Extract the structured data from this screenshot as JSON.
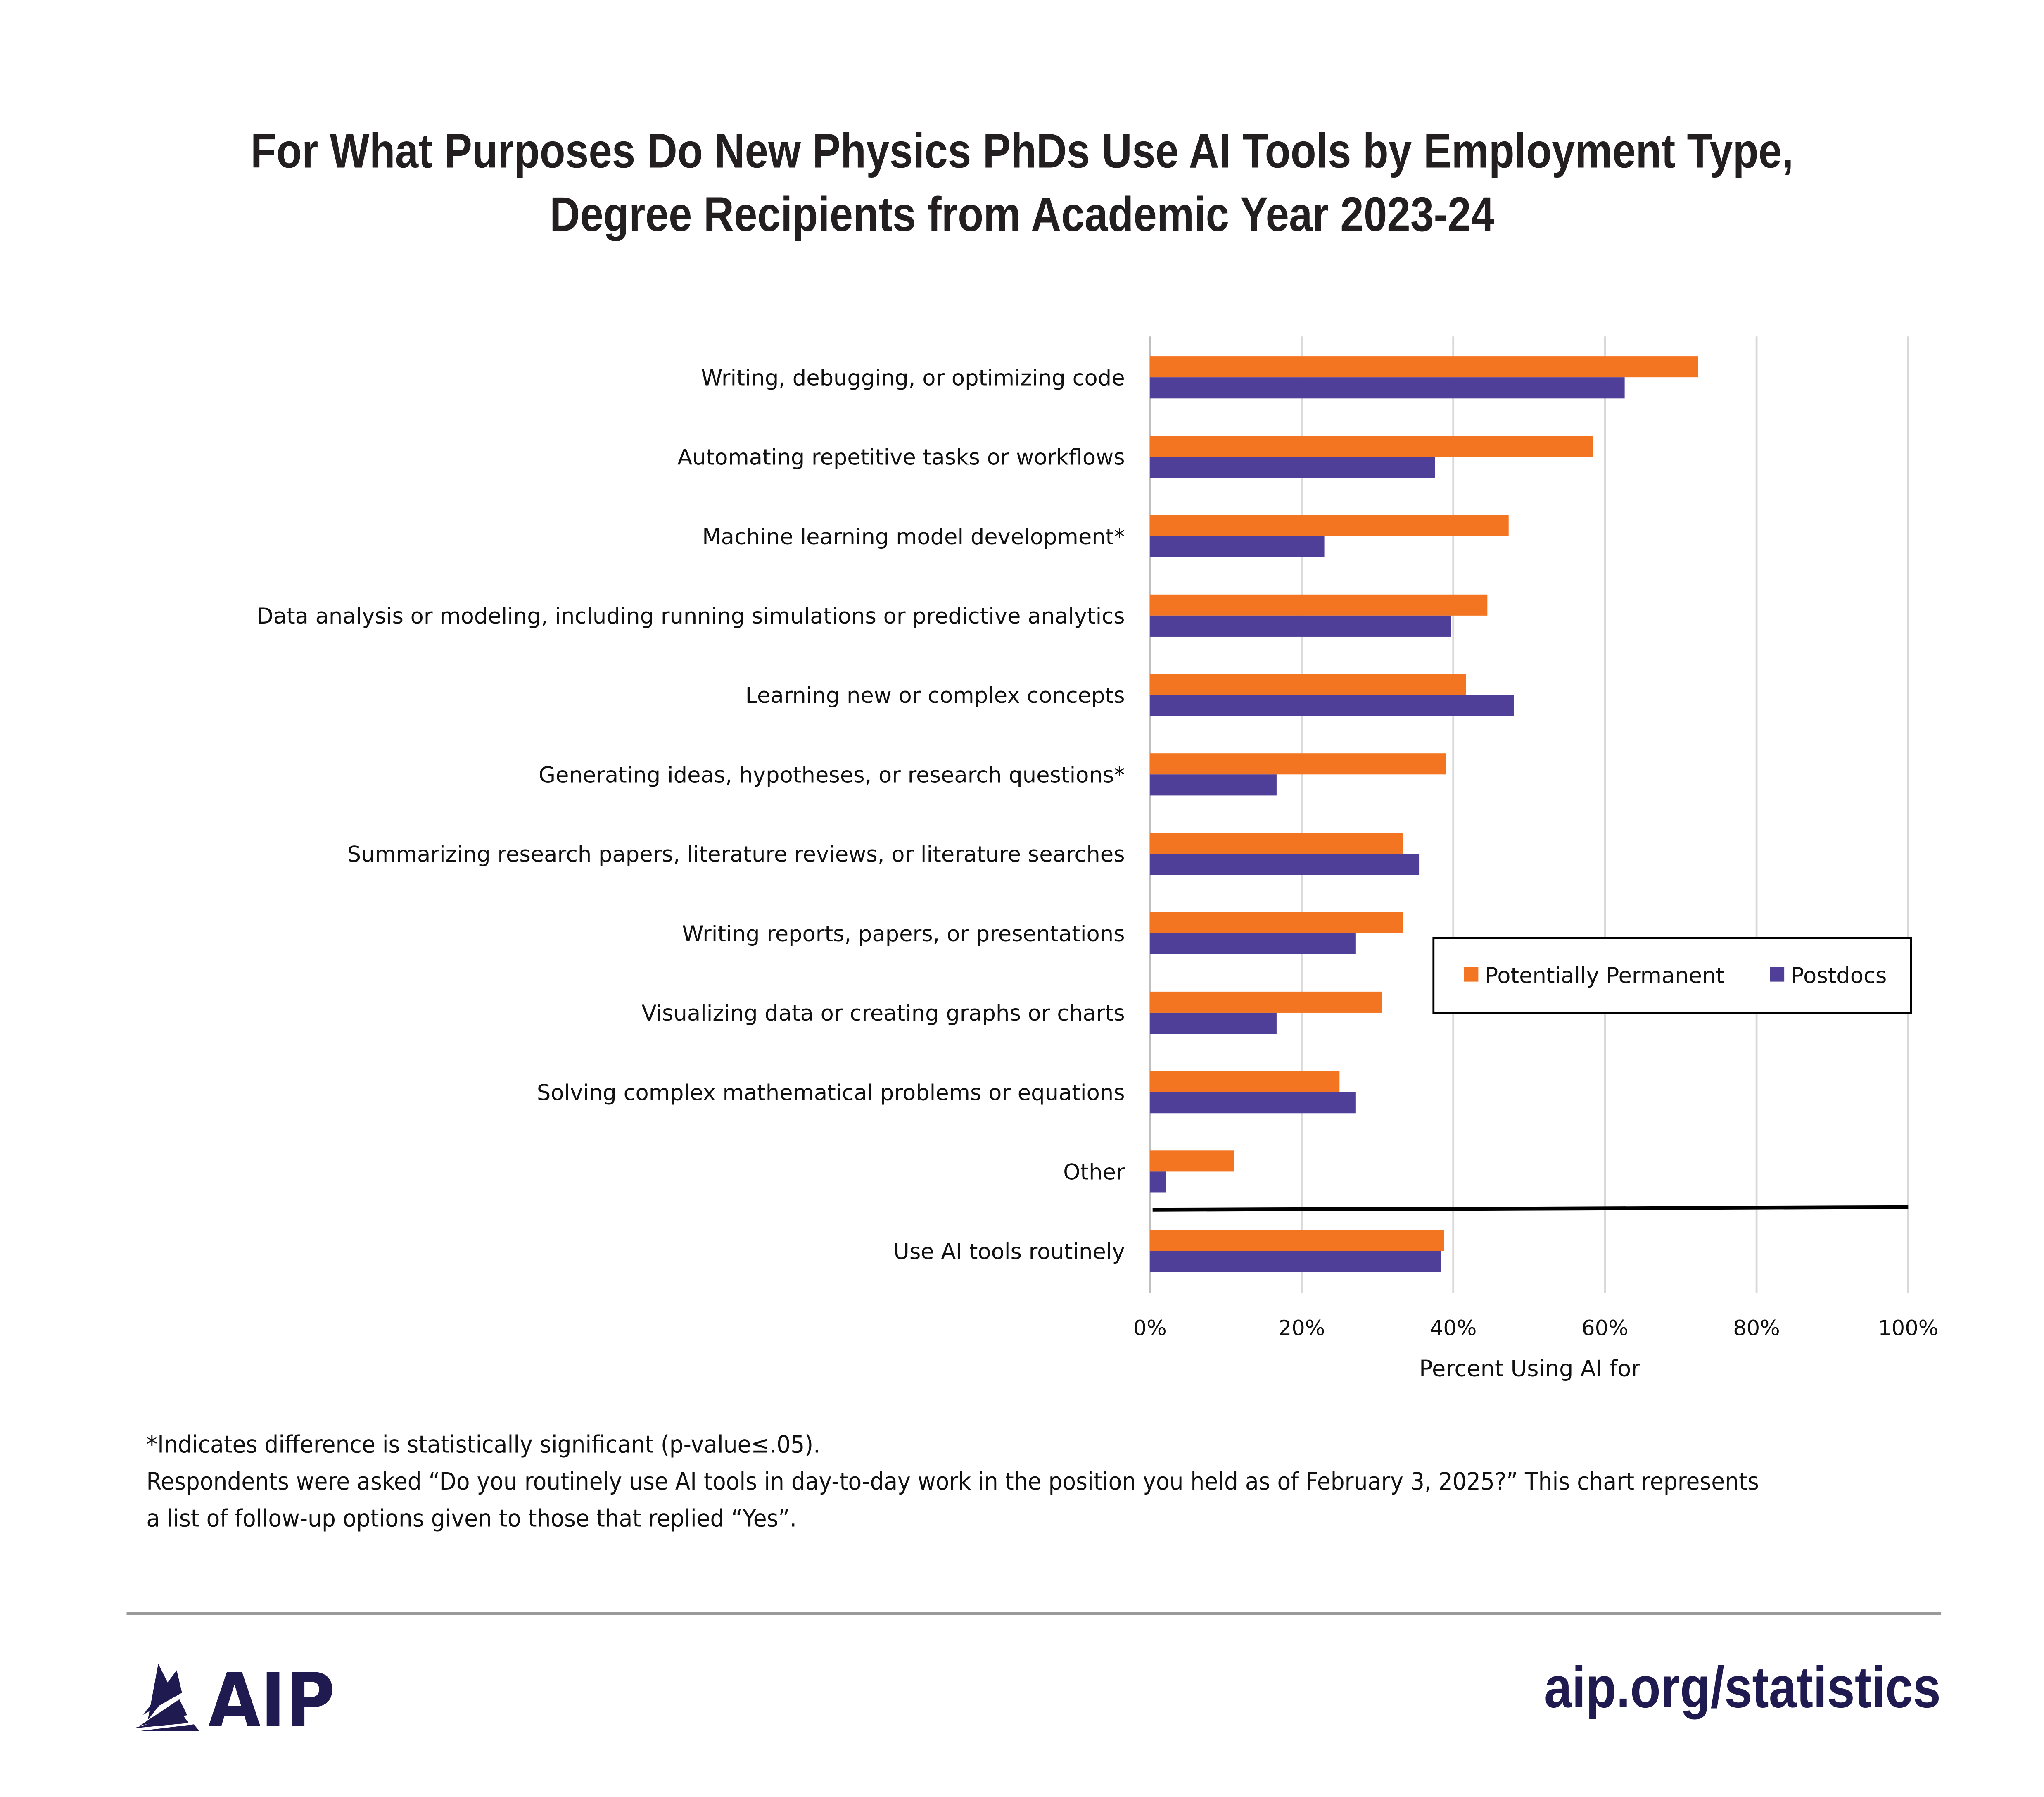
{
  "title_lines": [
    "For What Purposes Do New Physics PhDs Use AI Tools by Employment Type,",
    "Degree Recipients from Academic Year 2023-24"
  ],
  "notes": [
    "*Indicates difference is statistically significant (p-value≤.05).",
    "Respondents were asked “Do you routinely use AI tools in day-to-day work in the position you held as of February 3, 2025?” This chart represents",
    "a list of follow-up options given to those that replied “Yes”."
  ],
  "footer": {
    "logo_text": "AIP",
    "url": "aip.org/statistics"
  },
  "colors": {
    "orange": "#f47521",
    "purple": "#4f3f99"
  },
  "chart_data": {
    "type": "bar",
    "orientation": "horizontal",
    "title": "For What Purposes Do New Physics PhDs Use AI Tools by Employment Type, Degree Recipients from Academic Year 2023-24",
    "xlabel": "Percent Using AI for",
    "ylabel": "",
    "xlim": [
      0,
      100
    ],
    "xticks": [
      "0%",
      "20%",
      "40%",
      "60%",
      "80%",
      "100%"
    ],
    "xtick_values": [
      0,
      20,
      40,
      60,
      80,
      100
    ],
    "grid": true,
    "legend_position": "right-middle",
    "categories": [
      "Writing, debugging, or optimizing code",
      "Automating repetitive tasks or workflows",
      "Machine learning model development*",
      "Data analysis or modeling, including running simulations or predictive analytics",
      "Learning new or complex concepts",
      "Generating ideas, hypotheses, or research questions*",
      "Summarizing research papers, literature reviews, or literature searches",
      "Writing reports, papers, or presentations",
      "Visualizing data or creating graphs or charts",
      "Solving complex mathematical problems or equations",
      "Other",
      "Use AI tools routinely"
    ],
    "series": [
      {
        "name": "Potentially Permanent",
        "color": "#f47521",
        "values": [
          72.3,
          58.4,
          47.3,
          44.5,
          41.7,
          39.0,
          33.4,
          33.4,
          30.6,
          25.0,
          11.1,
          38.8
        ]
      },
      {
        "name": "Postdocs",
        "color": "#4f3f99",
        "values": [
          62.6,
          37.6,
          23.0,
          39.7,
          48.0,
          16.7,
          35.5,
          27.1,
          16.7,
          27.1,
          2.1,
          38.4
        ]
      }
    ]
  }
}
